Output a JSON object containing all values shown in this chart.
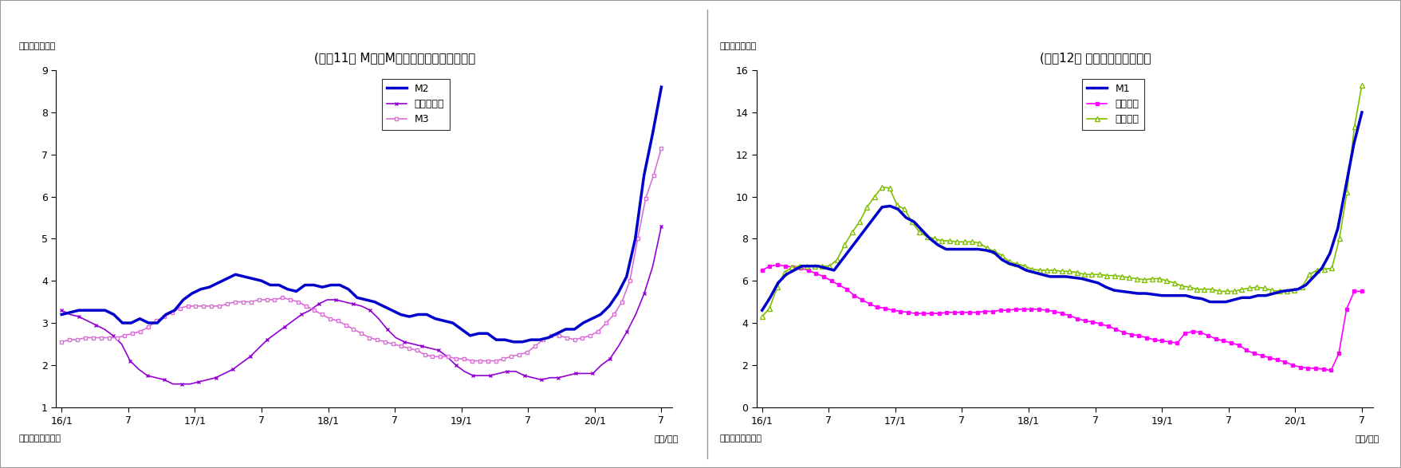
{
  "chart1": {
    "title": "(図表11） M２、M３、広義流動性の伸び率",
    "ylabel": "（前年比、％）",
    "ylabel_right": "（年/月）",
    "source": "（資料）日本銀行",
    "ylim": [
      1,
      9
    ],
    "yticks": [
      1,
      2,
      3,
      4,
      5,
      6,
      7,
      8,
      9
    ],
    "xtick_labels": [
      "16/1",
      "7",
      "17/1",
      "7",
      "18/1",
      "7",
      "19/1",
      "7",
      "20/1",
      "7"
    ],
    "xtick_positions": [
      0,
      6,
      12,
      18,
      24,
      30,
      36,
      42,
      48,
      54
    ],
    "M2": [
      3.2,
      3.25,
      3.3,
      3.3,
      3.3,
      3.3,
      3.2,
      3.0,
      3.0,
      3.1,
      3.0,
      3.0,
      3.2,
      3.3,
      3.55,
      3.7,
      3.8,
      3.85,
      3.95,
      4.05,
      4.15,
      4.1,
      4.05,
      4.0,
      3.9,
      3.9,
      3.8,
      3.75,
      3.9,
      3.9,
      3.85,
      3.9,
      3.9,
      3.8,
      3.6,
      3.55,
      3.5,
      3.4,
      3.3,
      3.2,
      3.15,
      3.2,
      3.2,
      3.1,
      3.05,
      3.0,
      2.85,
      2.7,
      2.75,
      2.75,
      2.6,
      2.6,
      2.55,
      2.55,
      2.6,
      2.6,
      2.65,
      2.75,
      2.85,
      2.85,
      3.0,
      3.1,
      3.2,
      3.4,
      3.7,
      4.1,
      5.0,
      6.5,
      7.5,
      8.6
    ],
    "hirogi": [
      3.3,
      3.2,
      3.15,
      3.05,
      2.95,
      2.85,
      2.7,
      2.5,
      2.1,
      1.9,
      1.75,
      1.7,
      1.65,
      1.55,
      1.55,
      1.55,
      1.6,
      1.65,
      1.7,
      1.8,
      1.9,
      2.05,
      2.2,
      2.4,
      2.6,
      2.75,
      2.9,
      3.05,
      3.2,
      3.3,
      3.45,
      3.55,
      3.55,
      3.5,
      3.45,
      3.4,
      3.3,
      3.1,
      2.85,
      2.65,
      2.55,
      2.5,
      2.45,
      2.4,
      2.35,
      2.2,
      2.0,
      1.85,
      1.75,
      1.75,
      1.75,
      1.8,
      1.85,
      1.85,
      1.75,
      1.7,
      1.65,
      1.7,
      1.7,
      1.75,
      1.8,
      1.8,
      1.8,
      2.0,
      2.15,
      2.45,
      2.8,
      3.2,
      3.7,
      4.35,
      5.3
    ],
    "M3": [
      2.55,
      2.6,
      2.6,
      2.65,
      2.65,
      2.65,
      2.65,
      2.65,
      2.7,
      2.75,
      2.8,
      2.9,
      3.05,
      3.15,
      3.25,
      3.35,
      3.4,
      3.4,
      3.4,
      3.4,
      3.4,
      3.45,
      3.5,
      3.5,
      3.5,
      3.55,
      3.55,
      3.55,
      3.6,
      3.55,
      3.5,
      3.4,
      3.3,
      3.2,
      3.1,
      3.05,
      2.95,
      2.85,
      2.75,
      2.65,
      2.6,
      2.55,
      2.5,
      2.45,
      2.4,
      2.35,
      2.25,
      2.2,
      2.2,
      2.2,
      2.15,
      2.15,
      2.1,
      2.1,
      2.1,
      2.1,
      2.15,
      2.2,
      2.25,
      2.3,
      2.45,
      2.6,
      2.7,
      2.7,
      2.65,
      2.6,
      2.65,
      2.7,
      2.8,
      3.0,
      3.2,
      3.5,
      4.0,
      5.0,
      5.95,
      6.5,
      7.15
    ],
    "colors": {
      "M2": "#0000cd",
      "hirogi": "#9400d3",
      "M3": "#da70d6"
    },
    "legend_labels": [
      "M2",
      "広義流動性",
      "M3"
    ]
  },
  "chart2": {
    "title": "(図表12） 現金・預金の伸び率",
    "ylabel": "（前年比、％）",
    "ylabel_right": "（年/月）",
    "source": "（資料）日本銀行",
    "ylim": [
      0,
      16
    ],
    "yticks": [
      0,
      2,
      4,
      6,
      8,
      10,
      12,
      14,
      16
    ],
    "xtick_labels": [
      "16/1",
      "7",
      "17/1",
      "7",
      "18/1",
      "7",
      "19/1",
      "7",
      "20/1",
      "7"
    ],
    "xtick_positions": [
      0,
      6,
      12,
      18,
      24,
      30,
      36,
      42,
      48,
      54
    ],
    "M1": [
      4.6,
      5.2,
      5.9,
      6.3,
      6.5,
      6.7,
      6.7,
      6.7,
      6.6,
      6.5,
      7.0,
      7.5,
      8.0,
      8.5,
      9.0,
      9.5,
      9.55,
      9.4,
      9.0,
      8.8,
      8.4,
      8.0,
      7.7,
      7.5,
      7.5,
      7.5,
      7.5,
      7.5,
      7.45,
      7.35,
      7.0,
      6.8,
      6.7,
      6.5,
      6.4,
      6.3,
      6.2,
      6.2,
      6.2,
      6.15,
      6.1,
      6.0,
      5.9,
      5.7,
      5.55,
      5.5,
      5.45,
      5.4,
      5.4,
      5.35,
      5.3,
      5.3,
      5.3,
      5.3,
      5.2,
      5.15,
      5.0,
      5.0,
      5.0,
      5.1,
      5.2,
      5.2,
      5.3,
      5.3,
      5.4,
      5.5,
      5.55,
      5.6,
      5.8,
      6.2,
      6.6,
      7.3,
      8.5,
      10.5,
      12.5,
      14.0
    ],
    "genkin": [
      6.5,
      6.7,
      6.75,
      6.7,
      6.65,
      6.6,
      6.5,
      6.35,
      6.2,
      6.0,
      5.8,
      5.6,
      5.3,
      5.1,
      4.9,
      4.75,
      4.7,
      4.6,
      4.55,
      4.5,
      4.45,
      4.45,
      4.45,
      4.45,
      4.5,
      4.5,
      4.5,
      4.5,
      4.5,
      4.55,
      4.55,
      4.6,
      4.6,
      4.65,
      4.65,
      4.65,
      4.65,
      4.6,
      4.55,
      4.45,
      4.35,
      4.2,
      4.1,
      4.05,
      3.95,
      3.85,
      3.7,
      3.55,
      3.45,
      3.4,
      3.3,
      3.2,
      3.15,
      3.1,
      3.05,
      3.5,
      3.6,
      3.55,
      3.4,
      3.25,
      3.15,
      3.05,
      2.95,
      2.7,
      2.55,
      2.45,
      2.35,
      2.25,
      2.15,
      2.0,
      1.9,
      1.85,
      1.85,
      1.8,
      1.75,
      2.55,
      4.65,
      5.5,
      5.5
    ],
    "yokin": [
      4.3,
      4.7,
      5.7,
      6.4,
      6.65,
      6.7,
      6.7,
      6.7,
      6.7,
      6.7,
      7.0,
      7.7,
      8.3,
      8.8,
      9.5,
      10.0,
      10.45,
      10.4,
      9.6,
      9.4,
      8.8,
      8.3,
      8.1,
      8.0,
      7.9,
      7.9,
      7.85,
      7.85,
      7.85,
      7.8,
      7.55,
      7.4,
      7.2,
      6.9,
      6.8,
      6.7,
      6.55,
      6.5,
      6.5,
      6.5,
      6.45,
      6.45,
      6.4,
      6.3,
      6.3,
      6.3,
      6.25,
      6.25,
      6.2,
      6.15,
      6.1,
      6.05,
      6.1,
      6.1,
      6.0,
      5.9,
      5.75,
      5.7,
      5.6,
      5.6,
      5.6,
      5.5,
      5.5,
      5.5,
      5.6,
      5.65,
      5.7,
      5.65,
      5.55,
      5.5,
      5.5,
      5.55,
      5.7,
      6.3,
      6.5,
      6.55,
      6.6,
      8.0,
      10.2,
      13.3,
      15.3
    ],
    "colors": {
      "M1": "#0000cd",
      "genkin": "#ff00ff",
      "yokin": "#7fbf00"
    },
    "legend_labels": [
      "M1",
      "現金通貨",
      "預金通貨"
    ]
  },
  "outer_border_color": "#999999",
  "divider_color": "#999999"
}
